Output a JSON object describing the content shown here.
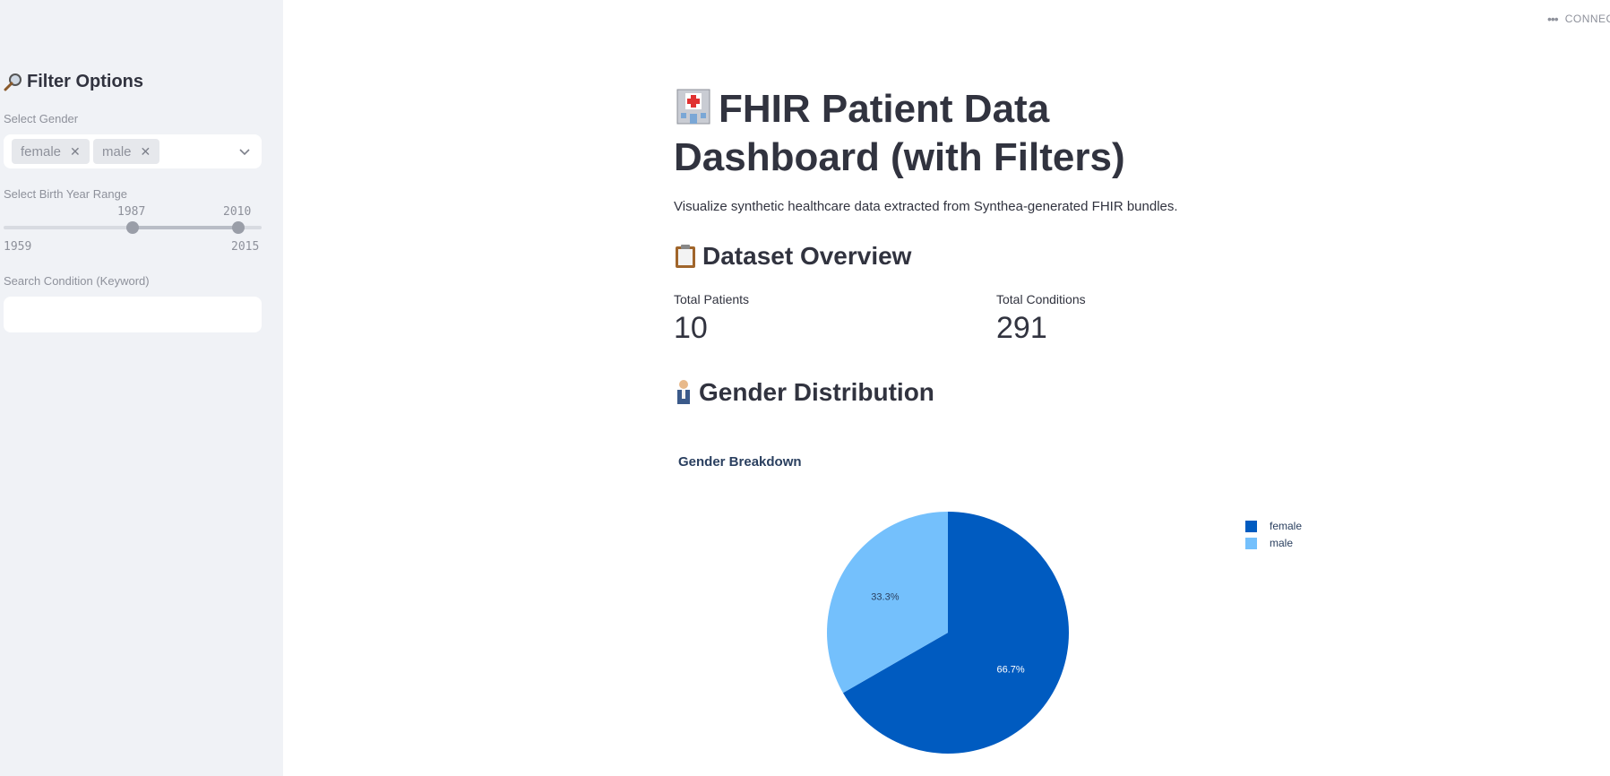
{
  "sidebar": {
    "title": "Filter Options",
    "gender_label": "Select Gender",
    "gender_chips": [
      "female",
      "male"
    ],
    "birth_year_label": "Select Birth Year Range",
    "range_low": "1987",
    "range_high": "2010",
    "range_min": "1959",
    "range_max": "2015",
    "search_label": "Search Condition (Keyword)",
    "search_value": ""
  },
  "topbar": {
    "status": "CONNECTING"
  },
  "main": {
    "title": "FHIR Patient Data Dashboard (with Filters)",
    "subtitle": "Visualize synthetic healthcare data extracted from Synthea-generated FHIR bundles.",
    "overview_heading": "Dataset Overview",
    "metrics": {
      "patients_label": "Total Patients",
      "patients_value": "10",
      "conditions_label": "Total Conditions",
      "conditions_value": "291"
    },
    "gender_heading": "Gender Distribution"
  },
  "chart_data": {
    "type": "pie",
    "title": "Gender Breakdown",
    "categories": [
      "female",
      "male"
    ],
    "values": [
      66.7,
      33.3
    ],
    "labels": [
      "66.7%",
      "33.3%"
    ],
    "colors": [
      "#005bc0",
      "#74c0fc"
    ],
    "legend": "top-right"
  }
}
